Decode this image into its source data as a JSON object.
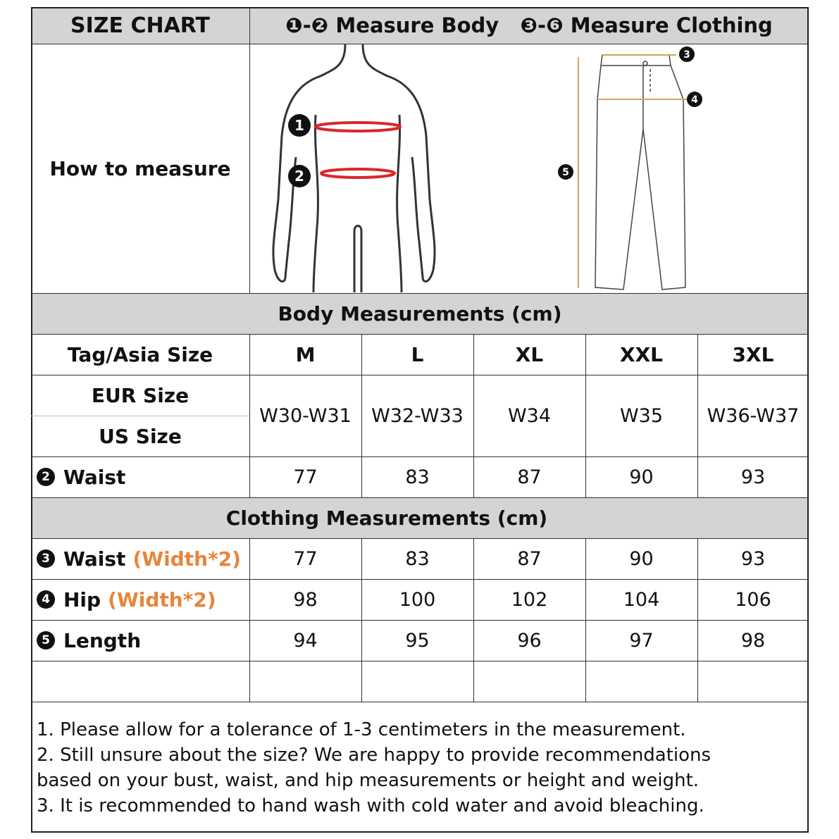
{
  "header": {
    "title": "SIZE CHART",
    "body_range": "❶-❷",
    "body_label": "Measure Body",
    "clothing_range": "❸-❻",
    "clothing_label": "Measure Clothing"
  },
  "how_to": {
    "label": "How to measure",
    "body_markers": [
      "1",
      "2"
    ],
    "pants_markers": [
      "3",
      "4",
      "5"
    ],
    "colors": {
      "body_line": "#d9262c",
      "pants_line": "#d9a05b"
    }
  },
  "body_section": {
    "title": "Body Measurements (cm)"
  },
  "sizes": {
    "label": "Tag/Asia Size",
    "values": [
      "M",
      "L",
      "XL",
      "XXL",
      "3XL"
    ]
  },
  "eur_label": "EUR Size",
  "us_label": "US Size",
  "eur_us": [
    "W30-W31",
    "W32-W33",
    "W34",
    "W35",
    "W36-W37"
  ],
  "body_waist": {
    "num": "2",
    "label": "Waist",
    "values": [
      "77",
      "83",
      "87",
      "90",
      "93"
    ]
  },
  "clothing_section": {
    "title": "Clothing Measurements  (cm)"
  },
  "clothing_rows": [
    {
      "num": "3",
      "label": "Waist",
      "note": "(Width*2)",
      "values": [
        "77",
        "83",
        "87",
        "90",
        "93"
      ]
    },
    {
      "num": "4",
      "label": "Hip",
      "note": "(Width*2)",
      "values": [
        "98",
        "100",
        "102",
        "104",
        "106"
      ]
    },
    {
      "num": "5",
      "label": "Length",
      "note": "",
      "values": [
        "94",
        "95",
        "96",
        "97",
        "98"
      ]
    }
  ],
  "notes": [
    "1. Please allow for a tolerance of 1-3 centimeters in the measurement.",
    "2. Still unsure about the size? We are happy to provide recommendations",
    "based on your bust, waist, and hip measurements or height and weight.",
    "3. It is recommended to hand wash with cold water and avoid bleaching."
  ],
  "accent": "#e8853a"
}
